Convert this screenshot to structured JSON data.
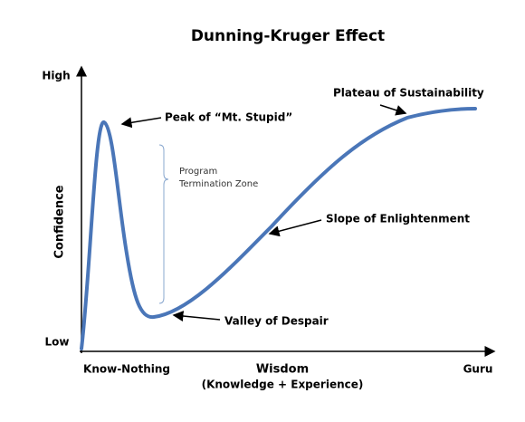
{
  "title": "Dunning-Kruger Effect",
  "y_axis": {
    "label": "Confidence",
    "high": "High",
    "low": "Low"
  },
  "x_axis": {
    "label": "Wisdom",
    "sublabel": "(Knowledge + Experience)",
    "start": "Know-Nothing",
    "end": "Guru"
  },
  "annotations": {
    "peak": "Peak of “Mt. Stupid”",
    "zone": [
      "Program",
      "Termination Zone"
    ],
    "valley": "Valley of Despair",
    "slope": "Slope of Enlightenment",
    "plateau": "Plateau of Sustainability"
  }
}
